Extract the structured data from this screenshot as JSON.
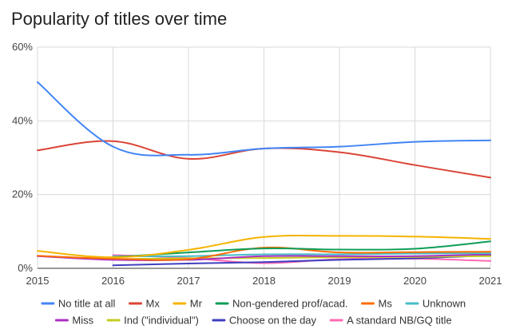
{
  "chart_data": {
    "type": "line",
    "title": "Popularity of titles over time",
    "xlabel": "",
    "ylabel": "",
    "x": [
      2015,
      2016,
      2017,
      2018,
      2019,
      2020,
      2021
    ],
    "xlim": [
      2015,
      2021
    ],
    "ylim": [
      0,
      60
    ],
    "y_ticks": [
      "0%",
      "20%",
      "40%",
      "60%"
    ],
    "y_tick_values": [
      0,
      20,
      40,
      60
    ],
    "grid": true,
    "legend_position": "bottom",
    "series": [
      {
        "name": "No title at all",
        "color": "#4285f4",
        "values": [
          50.5,
          33,
          30.8,
          32.5,
          33,
          34.3,
          34.7
        ]
      },
      {
        "name": "Mx",
        "color": "#db4437",
        "values": [
          32,
          34.5,
          29.7,
          32.5,
          31.5,
          28,
          24.6
        ]
      },
      {
        "name": "Mr",
        "color": "#f4b400",
        "values": [
          4.7,
          3,
          5,
          8.5,
          8.8,
          8.6,
          8
        ]
      },
      {
        "name": "Non-gendered prof/acad.",
        "color": "#0f9d58",
        "values": [
          null,
          3,
          4.3,
          5.4,
          5.1,
          5.3,
          7.3
        ]
      },
      {
        "name": "Ms",
        "color": "#ff6d01",
        "values": [
          3.4,
          2.6,
          2.5,
          5.6,
          4.3,
          4.4,
          4.5
        ]
      },
      {
        "name": "Unknown",
        "color": "#46bdc6",
        "values": [
          null,
          3.3,
          3.3,
          3.8,
          3.8,
          4,
          4.1
        ]
      },
      {
        "name": "Miss",
        "color": "#ab30c4",
        "values": [
          3.3,
          2.3,
          2.3,
          3.3,
          3.3,
          3.3,
          3.8
        ]
      },
      {
        "name": "Ind (\"individual\")",
        "color": "#c5cc1f",
        "values": [
          null,
          2.5,
          2.7,
          2.8,
          3,
          3.1,
          3.3
        ]
      },
      {
        "name": "Choose on the day",
        "color": "#3f3fbf",
        "values": [
          null,
          0.8,
          1.3,
          1.7,
          2.3,
          2.7,
          3.5
        ]
      },
      {
        "name": "A standard NB/GQ title",
        "color": "#ff69b4",
        "values": [
          null,
          3.6,
          2.8,
          1.4,
          2.5,
          2.6,
          2
        ]
      }
    ]
  }
}
